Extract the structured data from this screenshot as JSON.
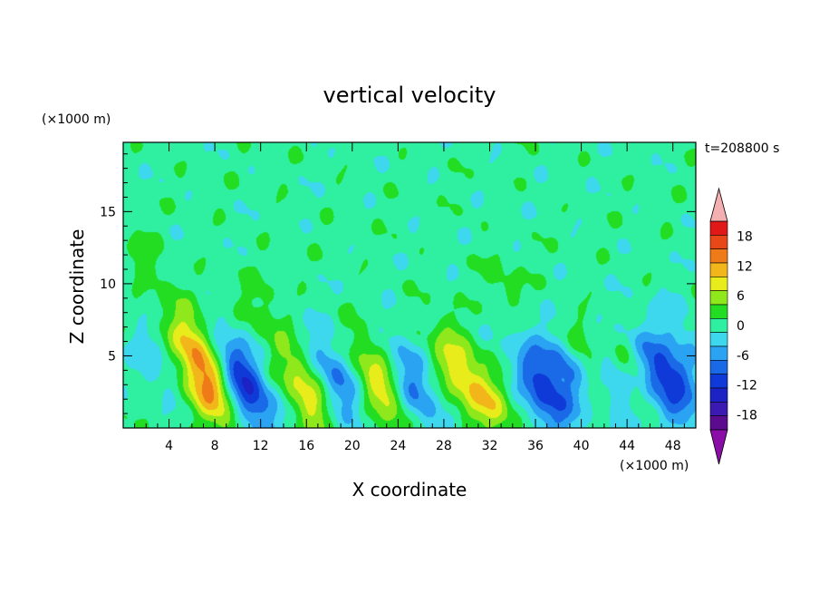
{
  "chart_data": {
    "type": "heatmap",
    "title": "vertical velocity",
    "xlabel": "X coordinate",
    "ylabel": "Z coordinate",
    "x_unit": "(×1000 m)",
    "y_unit": "(×1000 m)",
    "time_label": "t=208800 s",
    "xlim": [
      0,
      50
    ],
    "ylim": [
      0,
      19.8
    ],
    "x_ticks": [
      4,
      8,
      12,
      16,
      20,
      24,
      28,
      32,
      36,
      40,
      44,
      48
    ],
    "y_ticks": [
      5,
      10,
      15
    ],
    "colorbar": {
      "ticks": [
        18,
        12,
        6,
        0,
        -6,
        -12,
        -18
      ],
      "levels": [
        -21,
        -18,
        -15,
        -12,
        -9,
        -6,
        -3,
        0,
        3,
        6,
        9,
        12,
        15,
        18,
        21
      ],
      "colors": [
        "#5a0b8e",
        "#3a1ab0",
        "#1c22c4",
        "#0f3ad8",
        "#1a6ae8",
        "#2aa3f2",
        "#3dd8ee",
        "#2ef0a0",
        "#22dd22",
        "#8ee81c",
        "#e8ec1a",
        "#f2b51a",
        "#ee7a18",
        "#e84818",
        "#e01818"
      ],
      "under_color": "#8a0da8",
      "over_color": "#f4b0b0"
    },
    "features": [
      {
        "x": 7.3,
        "z": 3.1,
        "w": 13.5
      },
      {
        "x": 5.8,
        "z": 6.5,
        "w": 5.5
      },
      {
        "x": 11.0,
        "z": 2.3,
        "w": -11.0
      },
      {
        "x": 9.6,
        "z": 4.6,
        "w": -4.0
      },
      {
        "x": 16.0,
        "z": 2.6,
        "w": 9.0
      },
      {
        "x": 18.5,
        "z": 3.3,
        "w": -8.0
      },
      {
        "x": 22.5,
        "z": 3.0,
        "w": 9.5
      },
      {
        "x": 25.2,
        "z": 2.9,
        "w": -8.0
      },
      {
        "x": 29.5,
        "z": 3.8,
        "w": 9.0
      },
      {
        "x": 32.3,
        "z": 1.6,
        "w": 6.0
      },
      {
        "x": 36.8,
        "z": 2.6,
        "w": -11.5
      },
      {
        "x": 38.8,
        "z": 4.2,
        "w": -7.0
      },
      {
        "x": 40.5,
        "z": 4.8,
        "w": 5.0
      },
      {
        "x": 43.0,
        "z": 3.3,
        "w": -7.0
      },
      {
        "x": 44.5,
        "z": 3.5,
        "w": 6.0
      },
      {
        "x": 46.8,
        "z": 3.2,
        "w": -9.0
      },
      {
        "x": 48.3,
        "z": 3.6,
        "w": -7.0
      },
      {
        "x": 2.0,
        "z": 11.5,
        "w": 2.5
      },
      {
        "x": 12.0,
        "z": 8.2,
        "w": 3.0
      },
      {
        "x": 33.5,
        "z": 10.0,
        "w": 2.5
      },
      {
        "x": 49.0,
        "z": 6.5,
        "w": -3.5
      },
      {
        "x": 2.5,
        "z": 4.5,
        "w": -3.5
      }
    ]
  }
}
